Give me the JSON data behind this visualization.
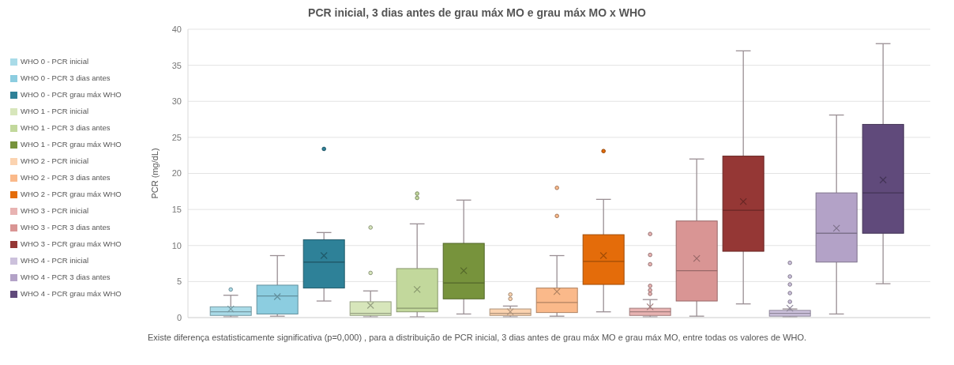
{
  "chart_data": {
    "type": "box",
    "title": "PCR inicial, 3 dias antes de grau máx MO e grau máx MO x WHO",
    "ylabel": "PCR (mg/dL)",
    "categories": [
      null
    ],
    "ylim": [
      0,
      40
    ],
    "yticks": [
      0,
      5,
      10,
      15,
      20,
      25,
      30,
      35,
      40
    ],
    "grid": "y",
    "legend": "left",
    "series": [
      {
        "name": "WHO 0 - PCR inicial",
        "color": "#a9dbe8",
        "boxes": [
          {
            "low": 0.1,
            "q1": 0.3,
            "median": 0.8,
            "q3": 1.5,
            "high": 3.1,
            "mean": 1.2,
            "outliers": [
              3.9
            ]
          }
        ]
      },
      {
        "name": "WHO 0 - PCR 3 dias antes",
        "color": "#8ccde0",
        "boxes": [
          {
            "low": 0.2,
            "q1": 0.5,
            "median": 3.0,
            "q3": 4.5,
            "high": 8.6,
            "mean": 2.9
          }
        ]
      },
      {
        "name": "WHO 0 - PCR grau máx WHO",
        "color": "#2e8198",
        "boxes": [
          {
            "low": 2.3,
            "q1": 4.1,
            "median": 7.7,
            "q3": 10.8,
            "high": 11.8,
            "mean": 8.6,
            "outliers": [
              23.4
            ]
          }
        ]
      },
      {
        "name": "WHO 1 - PCR inicial",
        "color": "#d7e6bb",
        "boxes": [
          {
            "low": 0.1,
            "q1": 0.3,
            "median": 0.6,
            "q3": 2.2,
            "high": 3.7,
            "mean": 1.7,
            "outliers": [
              6.2,
              12.5
            ]
          }
        ]
      },
      {
        "name": "WHO 1 - PCR 3 dias antes",
        "color": "#c2d89c",
        "boxes": [
          {
            "low": 0.1,
            "q1": 0.8,
            "median": 1.3,
            "q3": 6.8,
            "high": 13.0,
            "mean": 3.9,
            "outliers": [
              16.6,
              17.2
            ]
          }
        ]
      },
      {
        "name": "WHO 1 - PCR grau máx WHO",
        "color": "#77933c",
        "boxes": [
          {
            "low": 0.5,
            "q1": 2.6,
            "median": 4.8,
            "q3": 10.3,
            "high": 16.3,
            "mean": 6.5
          }
        ]
      },
      {
        "name": "WHO 2 - PCR inicial",
        "color": "#fbd3b0",
        "boxes": [
          {
            "low": 0.1,
            "q1": 0.3,
            "median": 0.6,
            "q3": 1.2,
            "high": 1.6,
            "mean": 0.8,
            "outliers": [
              2.6,
              3.2
            ]
          }
        ]
      },
      {
        "name": "WHO 2 - PCR 3 dias antes",
        "color": "#fab98a",
        "boxes": [
          {
            "low": 0.2,
            "q1": 0.7,
            "median": 2.1,
            "q3": 4.1,
            "high": 8.6,
            "mean": 3.6,
            "outliers": [
              14.1,
              18.0
            ]
          }
        ]
      },
      {
        "name": "WHO 2 - PCR grau máx WHO",
        "color": "#e46c0a",
        "boxes": [
          {
            "low": 0.8,
            "q1": 4.6,
            "median": 7.8,
            "q3": 11.5,
            "high": 16.4,
            "mean": 8.6,
            "outliers": [
              23.1
            ]
          }
        ]
      },
      {
        "name": "WHO 3 - PCR inicial",
        "color": "#e8b3b2",
        "boxes": [
          {
            "low": 0.1,
            "q1": 0.3,
            "median": 0.8,
            "q3": 1.3,
            "high": 2.5,
            "mean": 1.5,
            "outliers": [
              3.3,
              3.8,
              4.4,
              7.4,
              8.7,
              11.6
            ]
          }
        ]
      },
      {
        "name": "WHO 3 - PCR 3 dias antes",
        "color": "#d99594",
        "boxes": [
          {
            "low": 0.2,
            "q1": 2.3,
            "median": 6.5,
            "q3": 13.4,
            "high": 22.0,
            "mean": 8.2
          }
        ]
      },
      {
        "name": "WHO 3 - PCR grau máx WHO",
        "color": "#953735",
        "boxes": [
          {
            "low": 1.9,
            "q1": 9.2,
            "median": 14.9,
            "q3": 22.4,
            "high": 37.0,
            "mean": 16.1
          }
        ]
      },
      {
        "name": "WHO 4 - PCR inicial",
        "color": "#ccc1dc",
        "boxes": [
          {
            "low": 0.1,
            "q1": 0.2,
            "median": 0.6,
            "q3": 1.0,
            "high": 1.2,
            "mean": 1.3,
            "outliers": [
              2.2,
              3.4,
              4.6,
              5.7,
              7.6
            ]
          }
        ]
      },
      {
        "name": "WHO 4 - PCR 3 dias antes",
        "color": "#b3a2c7",
        "boxes": [
          {
            "low": 0.5,
            "q1": 7.7,
            "median": 11.7,
            "q3": 17.3,
            "high": 28.1,
            "mean": 12.4
          }
        ]
      },
      {
        "name": "WHO 4 - PCR grau máx WHO",
        "color": "#604a7b",
        "boxes": [
          {
            "low": 4.7,
            "q1": 11.7,
            "median": 17.3,
            "q3": 26.8,
            "high": 38.0,
            "mean": 19.1
          }
        ]
      }
    ],
    "annotations": [
      "Existe diferença estatisticamente significativa (p=0,000) , para a distribuição de PCR inicial, 3 dias antes de grau máx MO e grau máx MO, entre todas os valores de WHO."
    ]
  }
}
